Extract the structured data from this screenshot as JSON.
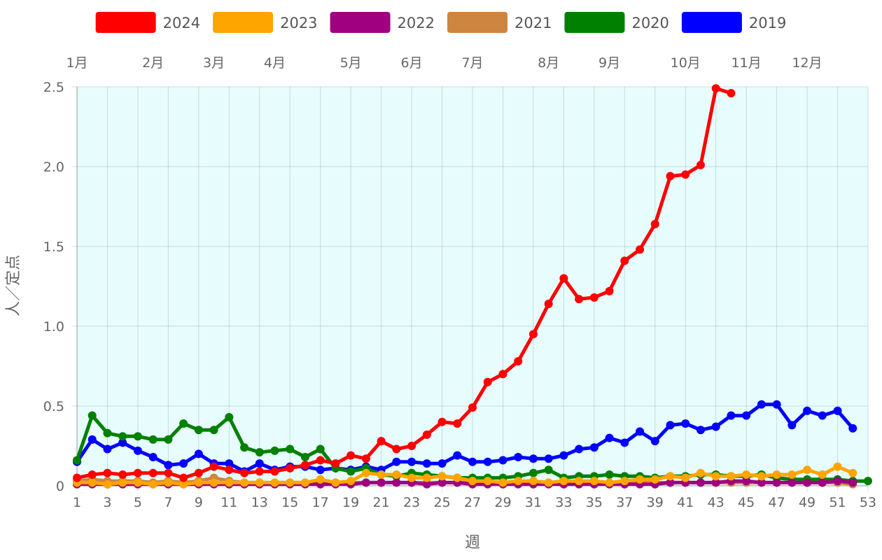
{
  "chart_data": {
    "type": "line",
    "x_axis": {
      "title": "週",
      "min": 1,
      "max": 53,
      "tick_labels": [
        "1",
        "3",
        "5",
        "7",
        "9",
        "11",
        "13",
        "15",
        "17",
        "19",
        "21",
        "23",
        "25",
        "27",
        "29",
        "31",
        "33",
        "35",
        "37",
        "39",
        "41",
        "43",
        "45",
        "47",
        "49",
        "51",
        "53"
      ]
    },
    "y_axis": {
      "title": "人／定点",
      "min": 0,
      "max": 2.5,
      "tick_labels": [
        "0",
        "0.5",
        "1.0",
        "1.5",
        "2.0",
        "2.5"
      ],
      "tick_values": [
        0,
        0.5,
        1.0,
        1.5,
        2.0,
        2.5
      ]
    },
    "month_labels": [
      {
        "label": "1月",
        "week": 1
      },
      {
        "label": "2月",
        "week": 6
      },
      {
        "label": "3月",
        "week": 10
      },
      {
        "label": "4月",
        "week": 14
      },
      {
        "label": "5月",
        "week": 19
      },
      {
        "label": "6月",
        "week": 23
      },
      {
        "label": "7月",
        "week": 27
      },
      {
        "label": "8月",
        "week": 32
      },
      {
        "label": "9月",
        "week": 36
      },
      {
        "label": "10月",
        "week": 41
      },
      {
        "label": "11月",
        "week": 45
      },
      {
        "label": "12月",
        "week": 49
      }
    ],
    "plot_background": "#e6fcfd",
    "grid": true,
    "legend_position": "top",
    "series": [
      {
        "name": "2024",
        "color": "#ff0000",
        "values": [
          0.05,
          0.07,
          0.08,
          0.07,
          0.08,
          0.08,
          0.08,
          0.05,
          0.08,
          0.12,
          0.1,
          0.08,
          0.09,
          0.09,
          0.11,
          0.13,
          0.16,
          0.14,
          0.19,
          0.17,
          0.28,
          0.23,
          0.25,
          0.32,
          0.4,
          0.39,
          0.49,
          0.65,
          0.7,
          0.78,
          0.95,
          1.14,
          1.3,
          1.17,
          1.18,
          1.22,
          1.41,
          1.48,
          1.64,
          1.94,
          1.95,
          2.01,
          2.49,
          2.46
        ]
      },
      {
        "name": "2023",
        "color": "#ffa500",
        "values": [
          0.02,
          0.02,
          0.01,
          0.02,
          0.02,
          0.01,
          0.02,
          0.01,
          0.02,
          0.02,
          0.02,
          0.02,
          0.02,
          0.02,
          0.02,
          0.02,
          0.04,
          0.02,
          0.03,
          0.08,
          0.07,
          0.07,
          0.05,
          0.05,
          0.06,
          0.05,
          0.03,
          0.03,
          0.02,
          0.03,
          0.03,
          0.02,
          0.03,
          0.03,
          0.03,
          0.02,
          0.03,
          0.04,
          0.04,
          0.06,
          0.05,
          0.08,
          0.06,
          0.06,
          0.07,
          0.06,
          0.07,
          0.07,
          0.1,
          0.07,
          0.12,
          0.08
        ]
      },
      {
        "name": "2022",
        "color": "#a0007f",
        "values": [
          0.01,
          0.01,
          0.01,
          0.01,
          0.01,
          0.01,
          0.01,
          0.01,
          0.01,
          0.01,
          0.01,
          0.01,
          0.01,
          0.01,
          0.01,
          0.01,
          0.01,
          0.01,
          0.01,
          0.02,
          0.02,
          0.02,
          0.02,
          0.01,
          0.02,
          0.02,
          0.01,
          0.01,
          0.01,
          0.01,
          0.01,
          0.01,
          0.01,
          0.01,
          0.01,
          0.01,
          0.01,
          0.01,
          0.01,
          0.02,
          0.02,
          0.02,
          0.02,
          0.03,
          0.03,
          0.02,
          0.02,
          0.02,
          0.02,
          0.02,
          0.03,
          0.02
        ]
      },
      {
        "name": "2021",
        "color": "#cd853f",
        "values": [
          0.03,
          0.04,
          0.03,
          0.03,
          0.03,
          0.02,
          0.03,
          0.02,
          0.03,
          0.05,
          0.03,
          0.02,
          0.02,
          0.02,
          0.02,
          0.02,
          0.02,
          0.02,
          0.02,
          0.02,
          0.02,
          0.02,
          0.02,
          0.02,
          0.02,
          0.02,
          0.02,
          0.02,
          0.02,
          0.02,
          0.02,
          0.02,
          0.02,
          0.02,
          0.02,
          0.02,
          0.02,
          0.02,
          0.02,
          0.02,
          0.02,
          0.02,
          0.02,
          0.02,
          0.02,
          0.02,
          0.02,
          0.02,
          0.02,
          0.02,
          0.02,
          0.01
        ]
      },
      {
        "name": "2020",
        "color": "#008000",
        "values": [
          0.16,
          0.44,
          0.33,
          0.31,
          0.31,
          0.29,
          0.29,
          0.39,
          0.35,
          0.35,
          0.43,
          0.24,
          0.21,
          0.22,
          0.23,
          0.18,
          0.23,
          0.11,
          0.09,
          0.11,
          0.07,
          0.06,
          0.08,
          0.07,
          0.06,
          0.05,
          0.05,
          0.05,
          0.05,
          0.06,
          0.08,
          0.1,
          0.05,
          0.06,
          0.06,
          0.07,
          0.06,
          0.06,
          0.05,
          0.06,
          0.06,
          0.07,
          0.07,
          0.06,
          0.06,
          0.07,
          0.05,
          0.04,
          0.04,
          0.04,
          0.04,
          0.03,
          0.03
        ]
      },
      {
        "name": "2019",
        "color": "#0000ff",
        "values": [
          0.15,
          0.29,
          0.23,
          0.27,
          0.22,
          0.18,
          0.13,
          0.14,
          0.2,
          0.14,
          0.14,
          0.09,
          0.14,
          0.1,
          0.12,
          0.12,
          0.1,
          0.11,
          0.1,
          0.12,
          0.1,
          0.15,
          0.15,
          0.14,
          0.14,
          0.19,
          0.15,
          0.15,
          0.16,
          0.18,
          0.17,
          0.17,
          0.19,
          0.23,
          0.24,
          0.3,
          0.27,
          0.34,
          0.28,
          0.38,
          0.39,
          0.35,
          0.37,
          0.44,
          0.44,
          0.51,
          0.51,
          0.38,
          0.47,
          0.44,
          0.47,
          0.36
        ]
      }
    ]
  }
}
